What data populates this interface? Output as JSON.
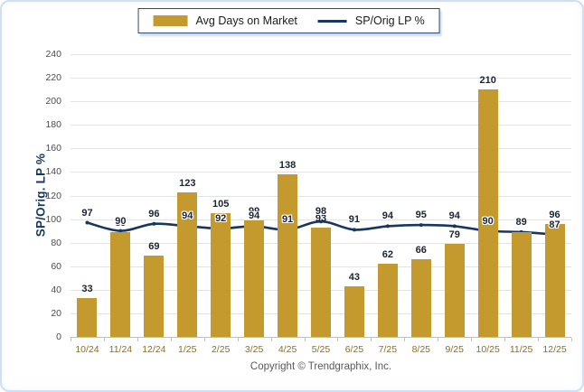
{
  "legend": {
    "bar_label": "Avg Days on Market",
    "line_label": "SP/Orig LP %"
  },
  "y_axis_title": "SP/Orig. LP %",
  "footer": {
    "copyright": "Copyright © Trendgraphix, Inc."
  },
  "colors": {
    "bar": "#C49A2F",
    "line": "#17375E",
    "value_label": "#1A2433",
    "x_tick_label": "#8F6D1E",
    "y_tick_label": "#4C4C4C",
    "gridline": "#E3E3E3",
    "axis_line": "#C0C0C0",
    "footer_text": "#595959"
  },
  "chart_data": {
    "type": "bar",
    "categories": [
      "10/24",
      "11/24",
      "12/24",
      "1/25",
      "2/25",
      "3/25",
      "4/25",
      "5/25",
      "6/25",
      "7/25",
      "8/25",
      "9/25",
      "10/25",
      "11/25",
      "12/25"
    ],
    "series": [
      {
        "name": "Avg Days on Market",
        "type": "bar",
        "values": [
          33,
          89,
          69,
          123,
          105,
          99,
          138,
          93,
          43,
          62,
          66,
          79,
          210,
          89,
          96
        ]
      },
      {
        "name": "SP/Orig LP %",
        "type": "line",
        "values": [
          97,
          90,
          96,
          94,
          92,
          94,
          91,
          98,
          91,
          94,
          95,
          94,
          90,
          89,
          87
        ]
      }
    ],
    "title": "",
    "xlabel": "",
    "ylabel": "SP/Orig. LP %",
    "ylim": [
      0,
      240
    ],
    "ytick_step": 20,
    "grid": true,
    "legend_position": "top-center"
  }
}
